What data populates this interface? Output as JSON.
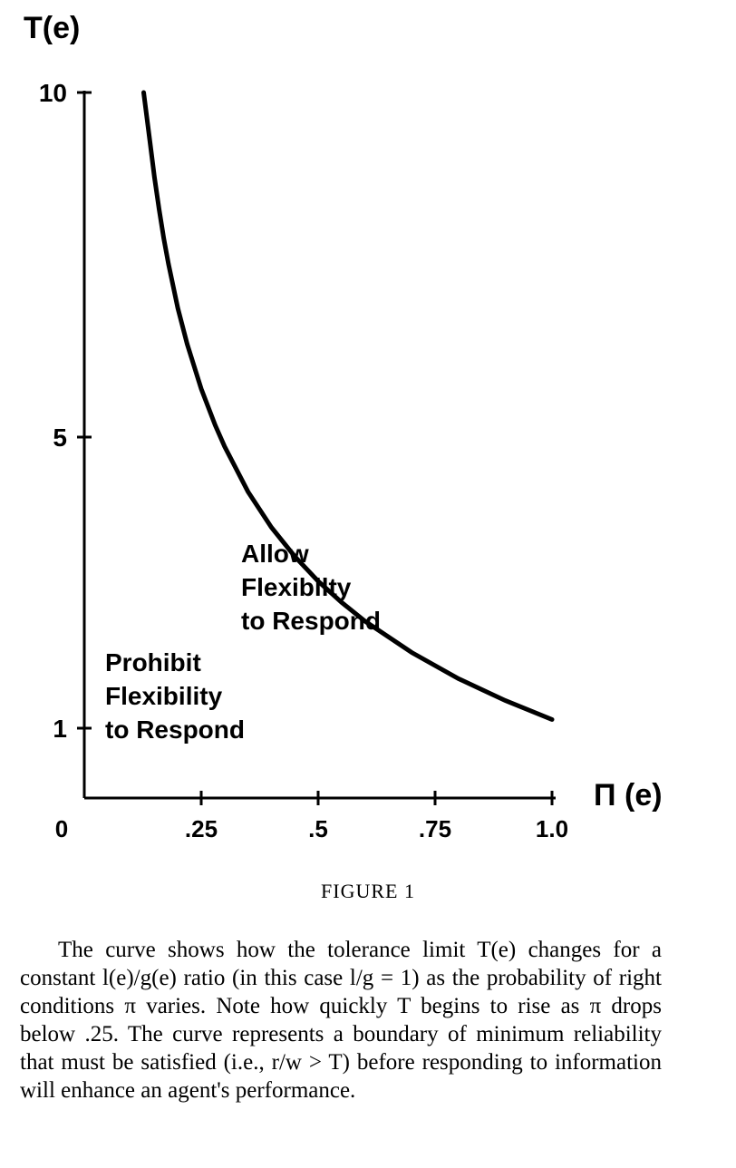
{
  "chart_data": {
    "type": "line",
    "ylabel": "T(e)",
    "xlabel": "Π (e)",
    "xlim": [
      0,
      1.0
    ],
    "ylim": [
      0,
      10
    ],
    "x_ticks": [
      {
        "value": 0.25,
        "label": ".25"
      },
      {
        "value": 0.5,
        "label": ".5"
      },
      {
        "value": 0.75,
        "label": ".75"
      },
      {
        "value": 1.0,
        "label": "1.0"
      }
    ],
    "origin_label": "0",
    "y_ticks": [
      {
        "value": 1,
        "label": "1"
      },
      {
        "value": 5,
        "label": "5"
      },
      {
        "value": 10,
        "label": "10"
      }
    ],
    "series": [
      {
        "x": [
          0.127,
          0.14,
          0.15,
          0.16,
          0.17,
          0.18,
          0.2,
          0.22,
          0.25,
          0.28,
          0.3,
          0.35,
          0.4,
          0.45,
          0.5,
          0.55,
          0.6,
          0.7,
          0.8,
          0.9,
          1.0
        ],
        "values": [
          10.0,
          9.31,
          8.77,
          8.3,
          7.88,
          7.51,
          6.87,
          6.35,
          5.7,
          5.17,
          4.87,
          4.25,
          3.76,
          3.36,
          3.02,
          2.73,
          2.47,
          2.04,
          1.68,
          1.38,
          1.12
        ]
      }
    ],
    "annotations": [
      {
        "lines": [
          "Allow",
          "Flexibilty",
          "to Respond"
        ]
      },
      {
        "lines": [
          "Prohibit",
          "Flexibility",
          "to Respond"
        ]
      }
    ],
    "grid": false
  },
  "figure_label": "FIGURE 1",
  "caption": "The curve shows how the tolerance limit T(e) changes for a constant l(e)/g(e) ratio (in this case l/g = 1) as the probability of right conditions π varies. Note how quickly T begins to rise as π drops below .25. The curve represents a boundary of minimum reliability that must be satisfied (i.e., r/w > T) before responding to information will enhance an agent's performance."
}
